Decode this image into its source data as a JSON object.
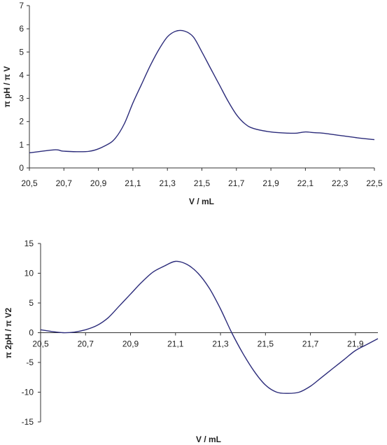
{
  "chart_data": [
    {
      "type": "line",
      "title": "",
      "xlabel": "V / mL",
      "ylabel": "π pH / π V",
      "xlim": [
        20.5,
        22.5
      ],
      "ylim": [
        0,
        7
      ],
      "x_ticks": [
        "20,5",
        "20,7",
        "20,9",
        "21,1",
        "21,3",
        "21,5",
        "21,7",
        "21,9",
        "22,1",
        "22,3",
        "22,5"
      ],
      "y_ticks": [
        "0",
        "1",
        "2",
        "3",
        "4",
        "5",
        "6",
        "7"
      ],
      "series": [
        {
          "x": [
            20.5,
            20.65,
            20.7,
            20.85,
            20.95,
            21.0,
            21.05,
            21.1,
            21.15,
            21.2,
            21.25,
            21.3,
            21.35,
            21.4,
            21.45,
            21.5,
            21.55,
            21.6,
            21.65,
            21.7,
            21.75,
            21.8,
            21.9,
            22.0,
            22.05,
            22.1,
            22.15,
            22.2,
            22.3,
            22.4,
            22.5
          ],
          "y": [
            0.65,
            0.78,
            0.72,
            0.72,
            1.0,
            1.3,
            1.9,
            2.8,
            3.6,
            4.4,
            5.1,
            5.65,
            5.9,
            5.9,
            5.65,
            5.0,
            4.3,
            3.6,
            2.9,
            2.3,
            1.9,
            1.7,
            1.55,
            1.5,
            1.5,
            1.55,
            1.52,
            1.5,
            1.4,
            1.3,
            1.22
          ]
        }
      ]
    },
    {
      "type": "line",
      "title": "",
      "xlabel": "V / mL",
      "ylabel": "π 2pH / π V2",
      "xlim": [
        20.5,
        22.0
      ],
      "ylim": [
        -15,
        15
      ],
      "x_ticks": [
        "20,5",
        "20,7",
        "20,9",
        "21,1",
        "21,3",
        "21,5",
        "21,7",
        "21,9"
      ],
      "y_ticks": [
        "15",
        "10",
        "5",
        "0",
        "-5",
        "-10",
        "-15"
      ],
      "series": [
        {
          "x": [
            20.5,
            20.55,
            20.6,
            20.65,
            20.7,
            20.75,
            20.8,
            20.85,
            20.9,
            20.95,
            21.0,
            21.05,
            21.1,
            21.15,
            21.2,
            21.25,
            21.3,
            21.35,
            21.4,
            21.45,
            21.5,
            21.55,
            21.6,
            21.65,
            21.7,
            21.75,
            21.8,
            21.85,
            21.9,
            21.95,
            22.0
          ],
          "y": [
            0.5,
            0.2,
            0.0,
            0.1,
            0.5,
            1.2,
            2.5,
            4.5,
            6.5,
            8.5,
            10.2,
            11.2,
            12.0,
            11.5,
            10.0,
            7.5,
            4.0,
            0.0,
            -3.5,
            -6.5,
            -8.8,
            -10.0,
            -10.2,
            -10.0,
            -9.0,
            -7.5,
            -6.0,
            -4.5,
            -3.0,
            -2.0,
            -1.0
          ]
        }
      ]
    }
  ]
}
